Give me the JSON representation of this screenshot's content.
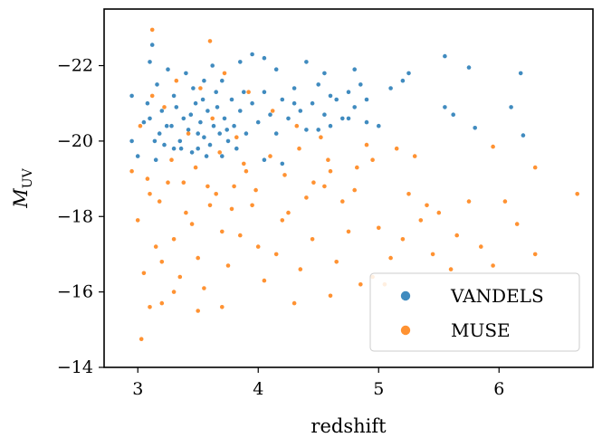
{
  "chart_data": {
    "type": "scatter",
    "xlabel": "redshift",
    "ylabel": "M",
    "ylabel_sub": "UV",
    "xlim": [
      2.72,
      6.78
    ],
    "ylim": [
      -14,
      -23.5
    ],
    "y_inverted": true,
    "xticks": [
      3,
      4,
      5,
      6
    ],
    "xtick_labels": [
      "3",
      "4",
      "5",
      "6"
    ],
    "yticks": [
      -22,
      -20,
      -18,
      -16,
      -14
    ],
    "ytick_labels": [
      "−22",
      "−20",
      "−18",
      "−16",
      "−14"
    ],
    "grid": false,
    "legend_position": "lower-right",
    "series": [
      {
        "name": "VANDELS",
        "color": "#1f77b4",
        "points": [
          [
            3.12,
            -22.55
          ],
          [
            3.1,
            -22.1
          ],
          [
            3.25,
            -21.9
          ],
          [
            3.4,
            -21.8
          ],
          [
            3.55,
            -21.6
          ],
          [
            3.62,
            -22.0
          ],
          [
            3.85,
            -22.1
          ],
          [
            3.95,
            -22.3
          ],
          [
            4.05,
            -22.2
          ],
          [
            4.15,
            -21.9
          ],
          [
            4.4,
            -22.1
          ],
          [
            4.55,
            -21.8
          ],
          [
            4.8,
            -21.9
          ],
          [
            5.25,
            -21.8
          ],
          [
            5.55,
            -22.25
          ],
          [
            5.75,
            -21.95
          ],
          [
            6.18,
            -21.8
          ],
          [
            5.55,
            -20.9
          ],
          [
            5.62,
            -20.7
          ],
          [
            5.8,
            -20.35
          ],
          [
            6.1,
            -20.9
          ],
          [
            6.2,
            -20.15
          ],
          [
            5.2,
            -21.6
          ],
          [
            5.1,
            -21.4
          ],
          [
            4.9,
            -21.1
          ],
          [
            4.6,
            -21.2
          ],
          [
            4.3,
            -21.0
          ],
          [
            2.95,
            -21.2
          ],
          [
            2.95,
            -20.0
          ],
          [
            3.0,
            -19.6
          ],
          [
            3.15,
            -19.5
          ],
          [
            3.3,
            -19.8
          ],
          [
            3.5,
            -19.8
          ],
          [
            3.7,
            -19.6
          ],
          [
            4.05,
            -19.5
          ],
          [
            4.2,
            -19.4
          ],
          [
            4.5,
            -20.3
          ],
          [
            4.75,
            -20.6
          ],
          [
            5.0,
            -20.4
          ],
          [
            3.05,
            -20.5
          ],
          [
            3.08,
            -21.0
          ],
          [
            3.18,
            -20.2
          ],
          [
            3.2,
            -20.8
          ],
          [
            3.22,
            -19.9
          ],
          [
            3.28,
            -20.4
          ],
          [
            3.3,
            -21.2
          ],
          [
            3.35,
            -20.0
          ],
          [
            3.38,
            -20.6
          ],
          [
            3.42,
            -20.3
          ],
          [
            3.45,
            -19.7
          ],
          [
            3.48,
            -21.0
          ],
          [
            3.52,
            -20.5
          ],
          [
            3.55,
            -20.1
          ],
          [
            3.58,
            -20.8
          ],
          [
            3.6,
            -19.9
          ],
          [
            3.63,
            -20.4
          ],
          [
            3.65,
            -21.3
          ],
          [
            3.68,
            -20.2
          ],
          [
            3.72,
            -20.6
          ],
          [
            3.75,
            -20.0
          ],
          [
            3.78,
            -21.1
          ],
          [
            3.8,
            -20.4
          ],
          [
            3.85,
            -20.8
          ],
          [
            3.9,
            -20.2
          ],
          [
            3.95,
            -21.0
          ],
          [
            4.0,
            -20.5
          ],
          [
            4.05,
            -21.3
          ],
          [
            4.1,
            -20.7
          ],
          [
            4.15,
            -20.2
          ],
          [
            4.2,
            -21.1
          ],
          [
            4.25,
            -20.6
          ],
          [
            4.3,
            -21.4
          ],
          [
            4.35,
            -20.8
          ],
          [
            4.4,
            -20.3
          ],
          [
            4.45,
            -21.0
          ],
          [
            4.5,
            -21.5
          ],
          [
            4.55,
            -20.7
          ],
          [
            4.6,
            -20.4
          ],
          [
            4.65,
            -21.1
          ],
          [
            4.7,
            -20.6
          ],
          [
            4.75,
            -21.3
          ],
          [
            4.8,
            -20.9
          ],
          [
            4.85,
            -21.5
          ],
          [
            4.9,
            -20.5
          ],
          [
            3.1,
            -20.6
          ],
          [
            3.14,
            -20.0
          ],
          [
            3.16,
            -21.5
          ],
          [
            3.24,
            -20.4
          ],
          [
            3.32,
            -20.9
          ],
          [
            3.36,
            -19.8
          ],
          [
            3.44,
            -20.7
          ],
          [
            3.46,
            -21.4
          ],
          [
            3.5,
            -20.2
          ],
          [
            3.54,
            -21.1
          ],
          [
            3.57,
            -19.6
          ],
          [
            3.66,
            -20.9
          ],
          [
            3.7,
            -21.6
          ],
          [
            3.74,
            -20.3
          ],
          [
            3.82,
            -19.8
          ],
          [
            3.88,
            -21.3
          ]
        ]
      },
      {
        "name": "MUSE",
        "color": "#ff7f0e",
        "points": [
          [
            3.12,
            -22.95
          ],
          [
            3.6,
            -22.65
          ],
          [
            6.65,
            -18.6
          ],
          [
            3.03,
            -14.75
          ],
          [
            3.1,
            -15.6
          ],
          [
            3.2,
            -15.7
          ],
          [
            3.3,
            -16.0
          ],
          [
            3.5,
            -15.5
          ],
          [
            3.7,
            -15.6
          ],
          [
            4.3,
            -15.7
          ],
          [
            4.6,
            -15.9
          ],
          [
            4.95,
            -16.4
          ],
          [
            5.05,
            -16.2
          ],
          [
            5.6,
            -16.6
          ],
          [
            5.95,
            -16.7
          ],
          [
            6.3,
            -17.0
          ],
          [
            6.3,
            -19.3
          ],
          [
            5.95,
            -19.85
          ],
          [
            5.75,
            -18.4
          ],
          [
            5.5,
            -18.1
          ],
          [
            5.35,
            -17.9
          ],
          [
            5.25,
            -18.6
          ],
          [
            5.15,
            -19.8
          ],
          [
            4.95,
            -19.5
          ],
          [
            4.8,
            -18.7
          ],
          [
            4.6,
            -19.2
          ],
          [
            4.4,
            -18.5
          ],
          [
            4.2,
            -17.9
          ],
          [
            4.0,
            -17.2
          ],
          [
            3.9,
            -19.2
          ],
          [
            3.8,
            -18.8
          ],
          [
            3.7,
            -17.6
          ],
          [
            3.6,
            -18.3
          ],
          [
            3.5,
            -16.9
          ],
          [
            3.4,
            -18.1
          ],
          [
            3.3,
            -17.4
          ],
          [
            3.2,
            -16.8
          ],
          [
            3.1,
            -18.6
          ],
          [
            3.0,
            -17.9
          ],
          [
            2.95,
            -19.2
          ],
          [
            3.05,
            -16.5
          ],
          [
            3.15,
            -17.2
          ],
          [
            3.25,
            -18.9
          ],
          [
            3.35,
            -16.4
          ],
          [
            3.45,
            -17.8
          ],
          [
            3.55,
            -16.1
          ],
          [
            3.65,
            -18.6
          ],
          [
            3.75,
            -16.7
          ],
          [
            3.85,
            -17.5
          ],
          [
            3.95,
            -18.3
          ],
          [
            4.05,
            -16.3
          ],
          [
            4.15,
            -17.0
          ],
          [
            4.25,
            -18.1
          ],
          [
            4.35,
            -16.6
          ],
          [
            4.45,
            -17.4
          ],
          [
            4.55,
            -18.8
          ],
          [
            4.65,
            -16.8
          ],
          [
            4.75,
            -17.6
          ],
          [
            4.85,
            -16.2
          ],
          [
            4.9,
            -19.9
          ],
          [
            5.0,
            -17.7
          ],
          [
            5.1,
            -16.9
          ],
          [
            5.2,
            -17.4
          ],
          [
            5.3,
            -19.6
          ],
          [
            5.4,
            -18.3
          ],
          [
            5.45,
            -17.0
          ],
          [
            5.65,
            -17.5
          ],
          [
            5.85,
            -17.2
          ],
          [
            6.05,
            -18.4
          ],
          [
            6.15,
            -17.8
          ],
          [
            3.08,
            -19.0
          ],
          [
            3.18,
            -18.4
          ],
          [
            3.28,
            -19.5
          ],
          [
            3.38,
            -18.9
          ],
          [
            3.48,
            -19.3
          ],
          [
            3.58,
            -18.8
          ],
          [
            3.68,
            -19.7
          ],
          [
            3.78,
            -18.2
          ],
          [
            3.88,
            -19.4
          ],
          [
            3.98,
            -18.7
          ],
          [
            4.1,
            -19.6
          ],
          [
            4.22,
            -19.1
          ],
          [
            4.34,
            -19.8
          ],
          [
            4.46,
            -18.9
          ],
          [
            4.58,
            -19.5
          ],
          [
            4.7,
            -18.4
          ],
          [
            4.82,
            -19.3
          ],
          [
            3.02,
            -20.4
          ],
          [
            3.22,
            -20.9
          ],
          [
            3.42,
            -20.2
          ],
          [
            3.62,
            -20.6
          ],
          [
            3.82,
            -20.1
          ],
          [
            3.12,
            -21.2
          ],
          [
            3.32,
            -21.6
          ],
          [
            3.52,
            -21.4
          ],
          [
            3.72,
            -21.8
          ],
          [
            3.92,
            -21.3
          ],
          [
            4.12,
            -20.8
          ],
          [
            4.32,
            -20.4
          ],
          [
            4.52,
            -20.1
          ]
        ]
      }
    ]
  }
}
